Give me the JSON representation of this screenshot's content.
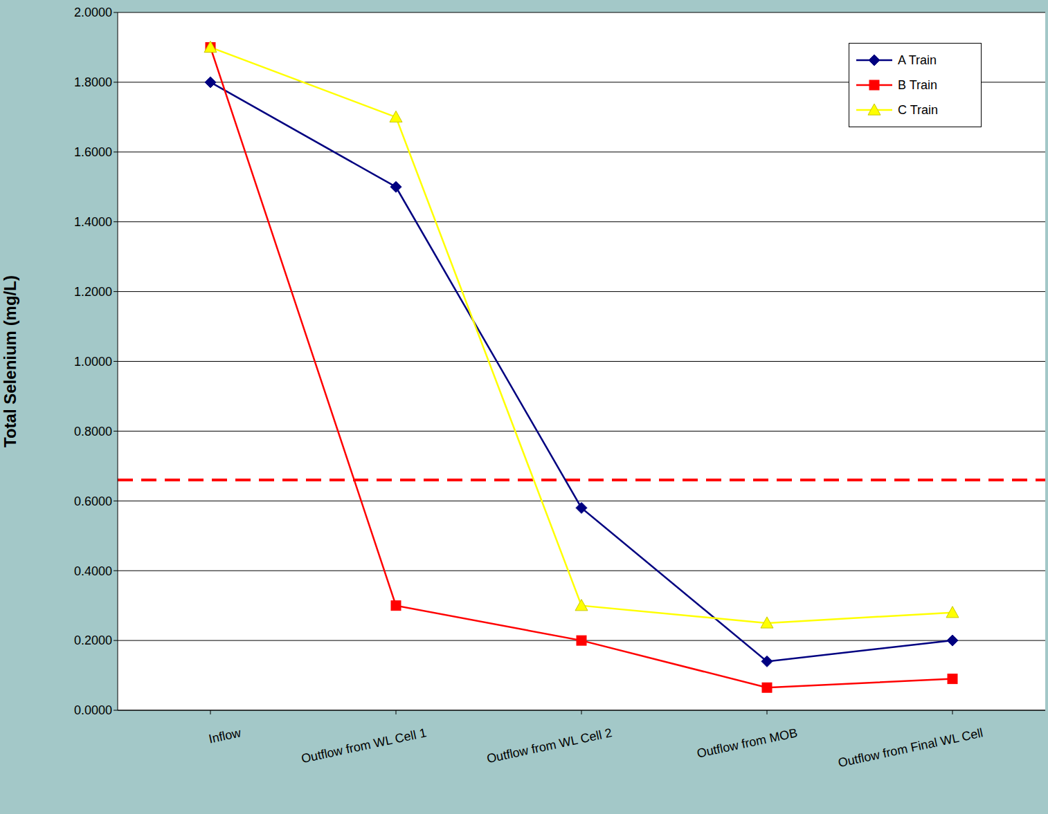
{
  "chart_data": {
    "type": "line",
    "y_label": "Total Selenium (mg/L)",
    "categories": [
      "Inflow",
      "Outflow from WL Cell 1",
      "Outflow from WL Cell 2",
      "Outflow from MOB",
      "Outflow from Final WL Cell"
    ],
    "series": [
      {
        "name": "A Train",
        "color": "#000080",
        "marker": "diamond",
        "values": [
          1.8,
          1.5,
          0.58,
          0.14,
          0.2
        ]
      },
      {
        "name": "B Train",
        "color": "#ff0000",
        "marker": "square",
        "values": [
          1.9,
          0.3,
          0.2,
          0.065,
          0.09
        ]
      },
      {
        "name": "C Train",
        "color": "#ffff00",
        "marker": "triangle",
        "values": [
          1.9,
          1.7,
          0.3,
          0.25,
          0.28
        ]
      }
    ],
    "reference_line": {
      "value": 0.66,
      "color": "#ff0000",
      "line_style": "dashed"
    },
    "ylim": [
      0,
      2
    ],
    "yticks": [
      {
        "value": 0,
        "label": "0.0000"
      },
      {
        "value": 0.2,
        "label": "0.2000"
      },
      {
        "value": 0.4,
        "label": "0.4000"
      },
      {
        "value": 0.6,
        "label": "0.6000"
      },
      {
        "value": 0.8,
        "label": "0.8000"
      },
      {
        "value": 1,
        "label": "1.0000"
      },
      {
        "value": 1.2,
        "label": "1.2000"
      },
      {
        "value": 1.4,
        "label": "1.4000"
      },
      {
        "value": 1.6,
        "label": "1.6000"
      },
      {
        "value": 1.8,
        "label": "1.8000"
      },
      {
        "value": 2,
        "label": "2.0000"
      }
    ],
    "grid": true,
    "legend": "upper right"
  }
}
